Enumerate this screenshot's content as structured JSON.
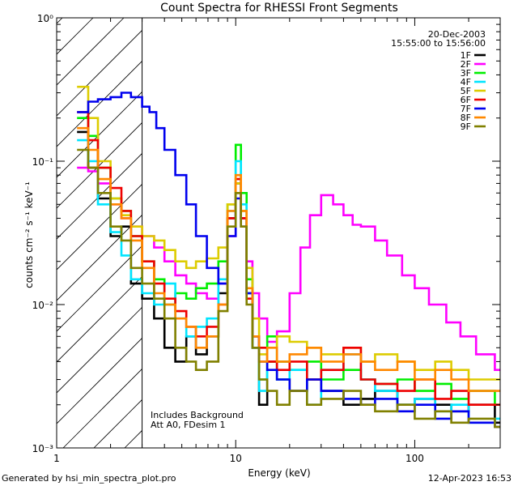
{
  "chart_data": {
    "type": "line",
    "title": "Count Spectra for RHESSI Front Segments",
    "xlabel": "Energy (keV)",
    "ylabel": "counts cm⁻² s⁻¹ keV⁻¹",
    "x_scale": "log",
    "y_scale": "log",
    "xlim": [
      1,
      300
    ],
    "ylim": [
      0.001,
      1
    ],
    "x_tick_labels": [
      "1",
      "10",
      "100"
    ],
    "y_tick_labels": [
      "10⁻³",
      "10⁻²",
      "10⁻¹",
      "10⁰"
    ],
    "shaded_region_keV": [
      1,
      3
    ],
    "annotations": {
      "date": "20-Dec-2003",
      "time_range": "15:55:00 to 15:56:00",
      "note_line1": "Includes Background",
      "note_line2": "Att A0, FDesim 1"
    },
    "series": [
      {
        "name": "1F",
        "color": "#000000",
        "x": [
          1.3,
          1.5,
          1.7,
          2.0,
          2.3,
          2.6,
          3.0,
          3.5,
          4.0,
          4.6,
          5.3,
          6.0,
          6.9,
          8.0,
          9.0,
          10.0,
          10.7,
          11.5,
          12.4,
          13.5,
          15,
          17,
          20,
          25,
          30,
          40,
          50,
          60,
          80,
          100,
          130,
          160,
          200,
          280
        ],
        "y": [
          0.16,
          0.09,
          0.055,
          0.03,
          0.035,
          0.014,
          0.011,
          0.008,
          0.005,
          0.004,
          0.006,
          0.0045,
          0.006,
          0.012,
          0.04,
          0.07,
          0.04,
          0.012,
          0.005,
          0.002,
          0.004,
          0.003,
          0.0025,
          0.003,
          0.0025,
          0.002,
          0.0022,
          0.0025,
          0.002,
          0.0022,
          0.002,
          0.0018,
          0.002,
          0.0015
        ]
      },
      {
        "name": "2F",
        "color": "#ff00ff",
        "x": [
          1.3,
          1.5,
          1.7,
          2.0,
          2.3,
          2.6,
          3.0,
          3.5,
          4.0,
          4.6,
          5.3,
          6.0,
          6.9,
          8.0,
          9.0,
          10.0,
          10.7,
          11.5,
          12.4,
          13.5,
          15,
          17,
          20,
          23,
          26,
          30,
          35,
          40,
          45,
          50,
          60,
          70,
          85,
          100,
          120,
          150,
          180,
          220,
          280
        ],
        "y": [
          0.09,
          0.085,
          0.07,
          0.05,
          0.04,
          0.035,
          0.03,
          0.025,
          0.02,
          0.016,
          0.014,
          0.012,
          0.011,
          0.014,
          0.03,
          0.06,
          0.04,
          0.02,
          0.012,
          0.008,
          0.0055,
          0.0065,
          0.012,
          0.025,
          0.042,
          0.058,
          0.05,
          0.042,
          0.036,
          0.035,
          0.028,
          0.022,
          0.016,
          0.013,
          0.01,
          0.0075,
          0.006,
          0.0045,
          0.0035
        ]
      },
      {
        "name": "3F",
        "color": "#00ee00",
        "x": [
          1.3,
          1.5,
          1.7,
          2.0,
          2.3,
          2.6,
          3.0,
          3.5,
          4.0,
          4.6,
          5.3,
          6.0,
          6.9,
          8.0,
          9.0,
          10.0,
          10.7,
          11.5,
          12.4,
          13.5,
          15,
          17,
          20,
          25,
          30,
          40,
          50,
          60,
          80,
          100,
          130,
          160,
          200,
          280
        ],
        "y": [
          0.2,
          0.15,
          0.09,
          0.055,
          0.045,
          0.03,
          0.02,
          0.015,
          0.01,
          0.012,
          0.011,
          0.013,
          0.014,
          0.02,
          0.05,
          0.13,
          0.06,
          0.015,
          0.006,
          0.003,
          0.006,
          0.004,
          0.0035,
          0.004,
          0.003,
          0.0035,
          0.003,
          0.0028,
          0.003,
          0.0025,
          0.0028,
          0.0022,
          0.0025,
          0.002
        ]
      },
      {
        "name": "4F",
        "color": "#00e5ff",
        "x": [
          1.3,
          1.5,
          1.7,
          2.0,
          2.3,
          2.6,
          3.0,
          3.5,
          4.0,
          4.6,
          5.3,
          6.0,
          6.9,
          8.0,
          9.0,
          10.0,
          10.7,
          11.5,
          12.4,
          13.5,
          15,
          17,
          20,
          25,
          30,
          40,
          50,
          60,
          80,
          100,
          130,
          160,
          200,
          280
        ],
        "y": [
          0.14,
          0.1,
          0.05,
          0.032,
          0.022,
          0.015,
          0.012,
          0.01,
          0.014,
          0.008,
          0.006,
          0.007,
          0.008,
          0.015,
          0.045,
          0.1,
          0.05,
          0.012,
          0.005,
          0.0025,
          0.004,
          0.003,
          0.0035,
          0.002,
          0.0035,
          0.0045,
          0.003,
          0.0025,
          0.002,
          0.0022,
          0.0018,
          0.002,
          0.0015,
          0.0016
        ]
      },
      {
        "name": "5F",
        "color": "#ddcc00",
        "x": [
          1.3,
          1.5,
          1.7,
          2.0,
          2.3,
          2.6,
          3.0,
          3.5,
          4.0,
          4.6,
          5.3,
          6.0,
          6.9,
          8.0,
          9.0,
          10.0,
          10.7,
          11.5,
          12.4,
          13.5,
          15,
          17,
          20,
          25,
          30,
          40,
          50,
          60,
          80,
          100,
          130,
          160,
          200,
          280
        ],
        "y": [
          0.33,
          0.2,
          0.1,
          0.055,
          0.042,
          0.035,
          0.03,
          0.028,
          0.024,
          0.02,
          0.018,
          0.02,
          0.021,
          0.025,
          0.05,
          0.07,
          0.045,
          0.018,
          0.008,
          0.0045,
          0.004,
          0.006,
          0.0055,
          0.005,
          0.0045,
          0.005,
          0.004,
          0.0045,
          0.004,
          0.0035,
          0.004,
          0.0035,
          0.003,
          0.003
        ]
      },
      {
        "name": "6F",
        "color": "#ee0000",
        "x": [
          1.3,
          1.5,
          1.7,
          2.0,
          2.3,
          2.6,
          3.0,
          3.5,
          4.0,
          4.6,
          5.3,
          6.0,
          6.9,
          8.0,
          9.0,
          10.0,
          10.7,
          11.5,
          12.4,
          13.5,
          15,
          17,
          20,
          25,
          30,
          40,
          50,
          60,
          80,
          100,
          130,
          160,
          200,
          280
        ],
        "y": [
          0.22,
          0.14,
          0.09,
          0.065,
          0.045,
          0.03,
          0.02,
          0.014,
          0.011,
          0.009,
          0.007,
          0.006,
          0.007,
          0.01,
          0.04,
          0.075,
          0.04,
          0.011,
          0.006,
          0.005,
          0.004,
          0.0035,
          0.004,
          0.003,
          0.0035,
          0.005,
          0.003,
          0.0028,
          0.0025,
          0.003,
          0.0022,
          0.0025,
          0.002,
          0.002
        ]
      },
      {
        "name": "7F",
        "color": "#0000ee",
        "x": [
          1.3,
          1.5,
          1.7,
          2.0,
          2.3,
          2.6,
          3.0,
          3.3,
          3.6,
          4.0,
          4.6,
          5.3,
          6.0,
          6.9,
          8.0,
          9.0,
          10.0,
          10.7,
          11.5,
          12.4,
          13.5,
          15,
          17,
          20,
          25,
          30,
          40,
          50,
          60,
          80,
          100,
          130,
          160,
          200,
          280
        ],
        "y": [
          0.22,
          0.26,
          0.27,
          0.28,
          0.3,
          0.28,
          0.24,
          0.22,
          0.17,
          0.12,
          0.08,
          0.05,
          0.03,
          0.018,
          0.014,
          0.03,
          0.055,
          0.035,
          0.012,
          0.006,
          0.004,
          0.0035,
          0.003,
          0.0025,
          0.003,
          0.0025,
          0.0022,
          0.002,
          0.0022,
          0.0018,
          0.002,
          0.0016,
          0.0018,
          0.0015,
          0.0014
        ]
      },
      {
        "name": "8F",
        "color": "#ff8800",
        "x": [
          1.3,
          1.5,
          1.7,
          2.0,
          2.3,
          2.6,
          3.0,
          3.5,
          4.0,
          4.6,
          5.3,
          6.0,
          6.9,
          8.0,
          9.0,
          10.0,
          10.7,
          11.5,
          12.4,
          13.5,
          15,
          17,
          20,
          25,
          30,
          40,
          50,
          60,
          80,
          100,
          130,
          160,
          200,
          280
        ],
        "y": [
          0.17,
          0.12,
          0.075,
          0.05,
          0.04,
          0.028,
          0.018,
          0.012,
          0.01,
          0.008,
          0.007,
          0.005,
          0.006,
          0.01,
          0.045,
          0.08,
          0.045,
          0.013,
          0.006,
          0.004,
          0.005,
          0.004,
          0.0045,
          0.005,
          0.004,
          0.0045,
          0.004,
          0.0035,
          0.004,
          0.003,
          0.0035,
          0.003,
          0.0025,
          0.0025
        ]
      },
      {
        "name": "9F",
        "color": "#808000",
        "x": [
          1.3,
          1.5,
          1.7,
          2.0,
          2.3,
          2.6,
          3.0,
          3.5,
          4.0,
          4.6,
          5.3,
          6.0,
          6.9,
          8.0,
          9.0,
          10.0,
          10.7,
          11.5,
          12.4,
          13.5,
          15,
          17,
          20,
          25,
          30,
          40,
          50,
          60,
          80,
          100,
          130,
          160,
          200,
          280
        ],
        "y": [
          0.12,
          0.09,
          0.06,
          0.035,
          0.028,
          0.018,
          0.014,
          0.011,
          0.008,
          0.005,
          0.004,
          0.0035,
          0.004,
          0.009,
          0.035,
          0.06,
          0.035,
          0.01,
          0.005,
          0.003,
          0.0025,
          0.002,
          0.0025,
          0.002,
          0.0022,
          0.0025,
          0.002,
          0.0018,
          0.002,
          0.0016,
          0.0018,
          0.0015,
          0.0016,
          0.0014
        ]
      }
    ]
  },
  "footer": {
    "generator": "Generated by hsi_min_spectra_plot.pro",
    "timestamp": "12-Apr-2023 16:53"
  }
}
